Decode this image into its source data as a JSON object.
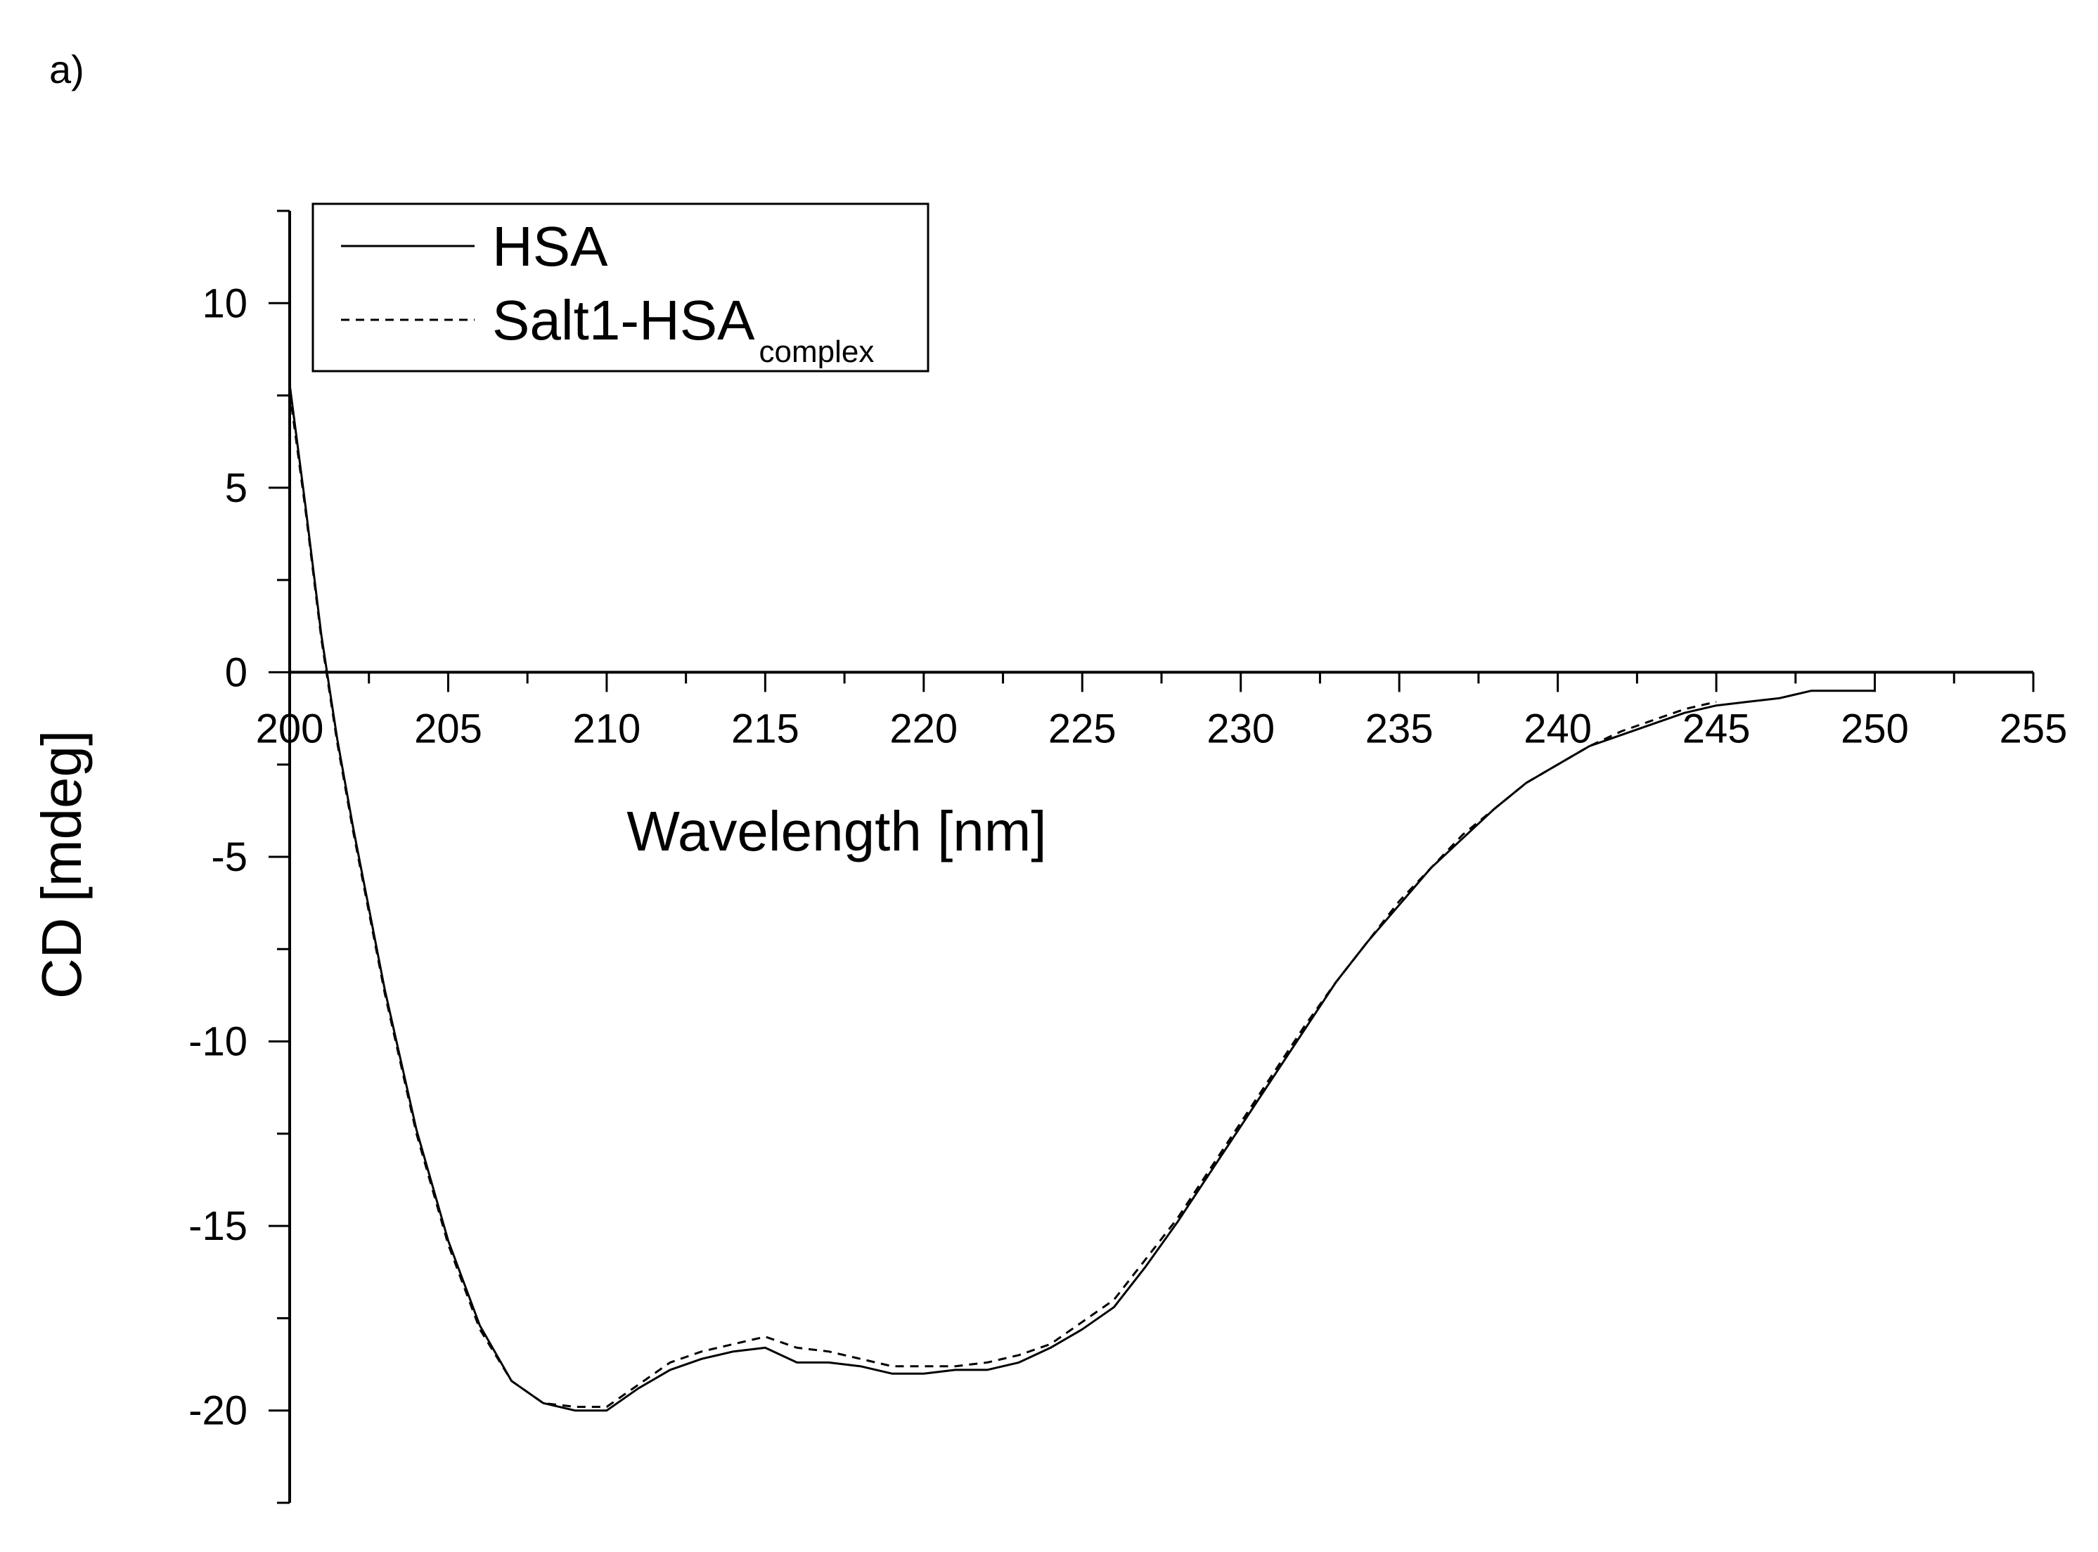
{
  "panel_label": "a)",
  "chart_data": {
    "type": "line",
    "title": "",
    "xlabel": "Wavelength [nm]",
    "ylabel": "CD [mdeg]",
    "xlim": [
      200,
      255
    ],
    "ylim": [
      -22.5,
      12.5
    ],
    "x_ticks": [
      "200",
      "205",
      "210",
      "215",
      "220",
      "225",
      "230",
      "235",
      "240",
      "245",
      "250",
      "255"
    ],
    "y_ticks": [
      "10",
      "5",
      "0",
      "-5",
      "-10",
      "-15",
      "-20"
    ],
    "grid": false,
    "legend_position": "top-left",
    "legend": [
      {
        "label": "HSA",
        "subscript": "",
        "style": "solid"
      },
      {
        "label": "Salt1-HSA",
        "subscript": "complex",
        "style": "dashed"
      }
    ],
    "series": [
      {
        "name": "HSA",
        "style": "solid",
        "color": "#000000",
        "x": [
          200,
          200.5,
          201,
          201.5,
          202,
          203,
          204,
          205,
          206,
          207,
          208,
          209,
          210,
          211,
          212,
          213,
          214,
          215,
          216,
          217,
          218,
          219,
          220,
          221,
          222,
          223,
          224,
          225,
          226,
          227,
          228,
          229,
          230,
          231,
          232,
          233,
          234,
          235,
          236,
          237,
          238,
          239,
          240,
          241,
          242,
          243,
          244,
          245,
          246,
          247,
          248,
          249,
          250
        ],
        "y": [
          7.8,
          4.5,
          1.0,
          -1.8,
          -4.2,
          -8.6,
          -12.4,
          -15.4,
          -17.7,
          -19.2,
          -19.8,
          -20.0,
          -20.0,
          -19.4,
          -18.9,
          -18.6,
          -18.4,
          -18.3,
          -18.7,
          -18.7,
          -18.8,
          -19.0,
          -19.0,
          -18.9,
          -18.9,
          -18.7,
          -18.3,
          -17.8,
          -17.2,
          -16.1,
          -14.9,
          -13.6,
          -12.3,
          -11.0,
          -9.7,
          -8.4,
          -7.3,
          -6.3,
          -5.3,
          -4.5,
          -3.7,
          -3.0,
          -2.5,
          -2.0,
          -1.7,
          -1.4,
          -1.1,
          -0.9,
          -0.8,
          -0.7,
          -0.5,
          -0.5,
          -0.5
        ]
      },
      {
        "name": "Salt1-HSA complex",
        "style": "dashed",
        "color": "#000000",
        "x": [
          200,
          200.5,
          201,
          201.5,
          202,
          203,
          204,
          205,
          206,
          207,
          208,
          209,
          210,
          211,
          212,
          213,
          214,
          215,
          216,
          217,
          218,
          219,
          220,
          221,
          222,
          223,
          224,
          225,
          226,
          227,
          228,
          229,
          230,
          231,
          232,
          233,
          234,
          235,
          236,
          237,
          238,
          239,
          240,
          241,
          242,
          243,
          244,
          245
        ],
        "y": [
          7.6,
          4.4,
          0.9,
          -1.9,
          -4.3,
          -8.7,
          -12.5,
          -15.5,
          -17.8,
          -19.2,
          -19.8,
          -19.9,
          -19.9,
          -19.3,
          -18.7,
          -18.4,
          -18.2,
          -18.0,
          -18.3,
          -18.4,
          -18.6,
          -18.8,
          -18.8,
          -18.8,
          -18.7,
          -18.5,
          -18.2,
          -17.6,
          -17.0,
          -15.9,
          -14.8,
          -13.5,
          -12.2,
          -10.9,
          -9.6,
          -8.4,
          -7.3,
          -6.2,
          -5.3,
          -4.4,
          -3.7,
          -3.0,
          -2.5,
          -2.0,
          -1.6,
          -1.3,
          -1.0,
          -0.8
        ]
      }
    ]
  }
}
